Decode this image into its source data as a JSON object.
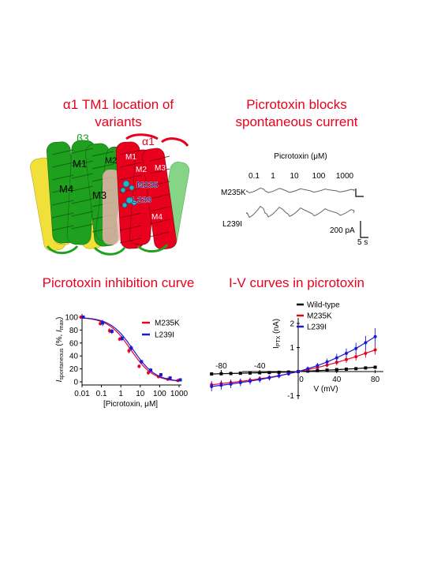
{
  "panels": {
    "structure": {
      "title": "α1 TM1 location of variants",
      "labels": {
        "beta3": "β3",
        "alpha1": "α1",
        "m1a": "M1",
        "m2a": "M2",
        "m4a": "M4",
        "m3a": "M3",
        "m1b": "M1",
        "m2b": "M2",
        "m3b": "M3",
        "m4b": "M4",
        "m235": "M235",
        "l239": "L239"
      },
      "colors": {
        "beta3": "#1fa01f",
        "alpha1": "#e8001c",
        "yellow": "#f2e03a",
        "cyan": "#1fb7c9"
      }
    },
    "traces": {
      "title": "Picrotoxin blocks spontaneous current",
      "conc_label": "Picrotoxin (μM)",
      "concs": [
        "0.1",
        "1",
        "10",
        "100",
        "1000"
      ],
      "rows": [
        "M235K",
        "L239I"
      ],
      "scale_current": "200 pA",
      "scale_time": "5 s"
    },
    "inhibition": {
      "title": "Picrotoxin inhibition curve"
    },
    "iv": {
      "title": "I-V curves in picrotoxin"
    }
  },
  "chart_data": [
    {
      "type": "scatter",
      "title": "Picrotoxin inhibition curve",
      "xlabel": "[Picrotoxin, μM]",
      "ylabel": "I_spontaneous (%, I_max)",
      "ylabel_parts": {
        "main": "I",
        "sub": "spontaneous",
        "mid": " (%, ",
        "main2": "I",
        "sub2": "max",
        "end": ")"
      },
      "xscale": "log",
      "xlim": [
        0.01,
        1000
      ],
      "ylim": [
        0,
        100
      ],
      "xticks": [
        "0.01",
        "0.1",
        "1",
        "10",
        "100",
        "1000"
      ],
      "yticks": [
        "0",
        "20",
        "40",
        "60",
        "80",
        "100"
      ],
      "legend_position": "top-right",
      "x": [
        0.01,
        0.1,
        0.3,
        1,
        3,
        10,
        30,
        100,
        300,
        1000
      ],
      "series": [
        {
          "name": "M235K",
          "color": "#e8001c",
          "values": [
            100,
            90,
            79,
            66,
            48,
            24,
            14,
            8,
            4,
            2
          ],
          "errors": [
            1,
            3,
            4,
            3,
            4,
            3,
            3,
            2,
            2,
            1
          ]
        },
        {
          "name": "L239I",
          "color": "#1a1ad6",
          "values": [
            100,
            91,
            78,
            67,
            52,
            31,
            18,
            11,
            6,
            3
          ],
          "errors": [
            1,
            5,
            4,
            4,
            4,
            3,
            3,
            2,
            2,
            1
          ]
        }
      ]
    },
    {
      "type": "line",
      "title": "I-V curves in picrotoxin",
      "xlabel": "V (mV)",
      "ylabel": "I_PTX (nA)",
      "ylabel_parts": {
        "main": "I",
        "sub": "PTX",
        "end": " (nA)"
      },
      "xlim": [
        -100,
        85
      ],
      "ylim": [
        -1.1,
        2.3
      ],
      "xticks": [
        "-80",
        "-40",
        "0",
        "40",
        "80"
      ],
      "yticks": [
        "-1",
        "0",
        "1",
        "2"
      ],
      "legend_position": "top-left",
      "x": [
        -90,
        -80,
        -70,
        -60,
        -50,
        -40,
        -30,
        -20,
        -10,
        0,
        10,
        20,
        30,
        40,
        50,
        60,
        70,
        80
      ],
      "series": [
        {
          "name": "Wild-type",
          "color": "#000000",
          "values": [
            -0.1,
            -0.09,
            -0.08,
            -0.07,
            -0.06,
            -0.05,
            -0.04,
            -0.03,
            -0.02,
            0,
            0.02,
            0.04,
            0.06,
            0.08,
            0.1,
            0.12,
            0.15,
            0.18
          ],
          "errors": [
            0.04,
            0.04,
            0.03,
            0.03,
            0.03,
            0.03,
            0.03,
            0.02,
            0.02,
            0.02,
            0.02,
            0.02,
            0.03,
            0.03,
            0.03,
            0.03,
            0.04,
            0.04
          ]
        },
        {
          "name": "M235K",
          "color": "#e8001c",
          "values": [
            -0.55,
            -0.5,
            -0.46,
            -0.41,
            -0.36,
            -0.3,
            -0.24,
            -0.17,
            -0.09,
            0,
            0.08,
            0.17,
            0.27,
            0.38,
            0.5,
            0.62,
            0.76,
            0.9
          ],
          "errors": [
            0.15,
            0.14,
            0.13,
            0.12,
            0.11,
            0.1,
            0.09,
            0.08,
            0.07,
            0.06,
            0.07,
            0.08,
            0.1,
            0.12,
            0.14,
            0.16,
            0.18,
            0.2
          ]
        },
        {
          "name": "L239I",
          "color": "#1a1ad6",
          "values": [
            -0.62,
            -0.57,
            -0.52,
            -0.46,
            -0.4,
            -0.33,
            -0.26,
            -0.18,
            -0.09,
            0,
            0.12,
            0.25,
            0.4,
            0.57,
            0.76,
            0.96,
            1.2,
            1.45
          ],
          "errors": [
            0.2,
            0.18,
            0.17,
            0.15,
            0.14,
            0.13,
            0.11,
            0.1,
            0.08,
            0.07,
            0.09,
            0.11,
            0.14,
            0.17,
            0.2,
            0.24,
            0.28,
            0.35
          ]
        }
      ]
    }
  ]
}
